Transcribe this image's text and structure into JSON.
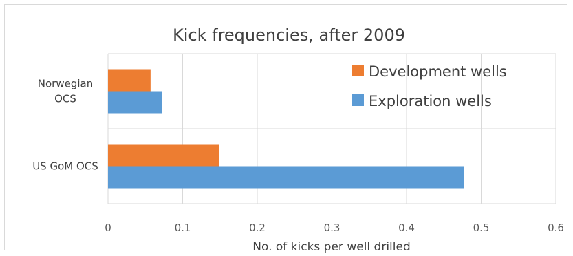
{
  "chart_data": {
    "type": "bar",
    "orientation": "horizontal",
    "title": "Kick frequencies, after 2009",
    "xlabel": "No. of kicks per well drilled",
    "ylabel": "",
    "categories": [
      "Norwegian OCS",
      "US GoM OCS"
    ],
    "category_lines": [
      [
        "Norwegian",
        "OCS"
      ],
      [
        "US GoM OCS"
      ]
    ],
    "series": [
      {
        "name": "Development wells",
        "color": "#ed7d31",
        "values": [
          0.057,
          0.149
        ]
      },
      {
        "name": "Exploration wells",
        "color": "#5b9bd5",
        "values": [
          0.072,
          0.477
        ]
      }
    ],
    "xlim": [
      0,
      0.6
    ],
    "xticks": [
      "0",
      "0.1",
      "0.2",
      "0.3",
      "0.4",
      "0.5",
      "0.6"
    ],
    "grid": true,
    "legend_position": "top-right"
  }
}
